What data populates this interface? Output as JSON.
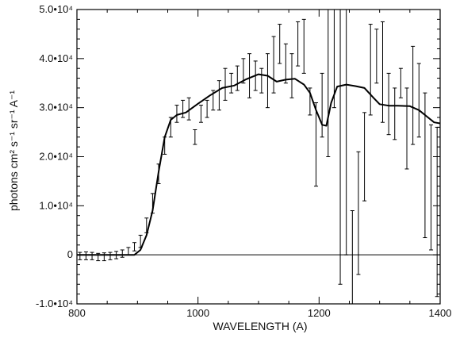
{
  "chart_data": {
    "type": "line",
    "title": "",
    "xlabel": "WAVELENGTH (A)",
    "ylabel": "photons cm² s⁻¹ sr⁻¹ A⁻¹",
    "xlim": [
      800,
      1400
    ],
    "ylim": [
      -10000,
      50000
    ],
    "x_ticks": [
      800,
      1000,
      1200,
      1400
    ],
    "x_tick_labels": [
      "800",
      "1000",
      "1200",
      "1400"
    ],
    "y_ticks": [
      -10000,
      0,
      10000,
      20000,
      30000,
      40000,
      50000
    ],
    "y_tick_labels": [
      "-1.0•10⁴",
      "0",
      "1.0•10⁴",
      "2.0•10⁴",
      "3.0•10⁴",
      "4.0•10⁴",
      "5.0•10⁴"
    ],
    "zero_line": 0,
    "grid": false,
    "model_curve": {
      "x": [
        800,
        850,
        895,
        905,
        915,
        925,
        935,
        945,
        955,
        965,
        980,
        1000,
        1020,
        1040,
        1060,
        1080,
        1100,
        1115,
        1130,
        1145,
        1160,
        1175,
        1185,
        1195,
        1205,
        1212,
        1220,
        1230,
        1245,
        1260,
        1275,
        1290,
        1300,
        1315,
        1330,
        1350,
        1365,
        1380,
        1390,
        1400
      ],
      "y": [
        0,
        0,
        0,
        1000,
        4000,
        9000,
        17000,
        24000,
        27500,
        28500,
        29000,
        30800,
        32500,
        34000,
        34500,
        35800,
        36800,
        36500,
        35300,
        35700,
        35900,
        34700,
        33000,
        29500,
        26500,
        26300,
        31000,
        34300,
        34700,
        34400,
        34000,
        32000,
        30700,
        30400,
        30400,
        30300,
        29500,
        28000,
        27000,
        26800
      ]
    },
    "error_bars": [
      {
        "x": 805,
        "low": -1000,
        "high": 500
      },
      {
        "x": 815,
        "low": -1000,
        "high": 600
      },
      {
        "x": 825,
        "low": -1000,
        "high": 500
      },
      {
        "x": 835,
        "low": -1200,
        "high": 300
      },
      {
        "x": 845,
        "low": -1200,
        "high": 400
      },
      {
        "x": 855,
        "low": -1000,
        "high": 500
      },
      {
        "x": 865,
        "low": -800,
        "high": 700
      },
      {
        "x": 875,
        "low": -500,
        "high": 1000
      },
      {
        "x": 885,
        "low": 0,
        "high": 1500
      },
      {
        "x": 895,
        "low": 800,
        "high": 2500
      },
      {
        "x": 905,
        "low": 1500,
        "high": 4000
      },
      {
        "x": 915,
        "low": 4500,
        "high": 7500
      },
      {
        "x": 925,
        "low": 8500,
        "high": 12500
      },
      {
        "x": 935,
        "low": 14500,
        "high": 18500
      },
      {
        "x": 945,
        "low": 20500,
        "high": 24000
      },
      {
        "x": 955,
        "low": 24000,
        "high": 28000
      },
      {
        "x": 965,
        "low": 27000,
        "high": 30500
      },
      {
        "x": 975,
        "low": 28000,
        "high": 31500
      },
      {
        "x": 985,
        "low": 27500,
        "high": 32000
      },
      {
        "x": 995,
        "low": 22500,
        "high": 25500
      },
      {
        "x": 1005,
        "low": 27000,
        "high": 30500
      },
      {
        "x": 1015,
        "low": 28000,
        "high": 31500
      },
      {
        "x": 1025,
        "low": 29500,
        "high": 33500
      },
      {
        "x": 1035,
        "low": 29500,
        "high": 35500
      },
      {
        "x": 1045,
        "low": 31500,
        "high": 38000
      },
      {
        "x": 1055,
        "low": 33000,
        "high": 37000
      },
      {
        "x": 1065,
        "low": 33500,
        "high": 38500
      },
      {
        "x": 1075,
        "low": 35000,
        "high": 40000
      },
      {
        "x": 1085,
        "low": 32000,
        "high": 41000
      },
      {
        "x": 1095,
        "low": 33500,
        "high": 39500
      },
      {
        "x": 1105,
        "low": 33000,
        "high": 38000
      },
      {
        "x": 1115,
        "low": 30000,
        "high": 41000
      },
      {
        "x": 1125,
        "low": 33000,
        "high": 44500
      },
      {
        "x": 1135,
        "low": 39000,
        "high": 47000
      },
      {
        "x": 1145,
        "low": 35000,
        "high": 43000
      },
      {
        "x": 1155,
        "low": 32000,
        "high": 41000
      },
      {
        "x": 1165,
        "low": 38500,
        "high": 47500
      },
      {
        "x": 1175,
        "low": 37000,
        "high": 48000
      },
      {
        "x": 1185,
        "low": 28500,
        "high": 34000
      },
      {
        "x": 1195,
        "low": 14000,
        "high": 31000
      },
      {
        "x": 1205,
        "low": 24000,
        "high": 37000
      },
      {
        "x": 1215,
        "low": 20000,
        "high": 50000
      },
      {
        "x": 1225,
        "low": 30000,
        "high": 50000
      },
      {
        "x": 1235,
        "low": -6000,
        "high": 50000
      },
      {
        "x": 1245,
        "low": 0,
        "high": 50000
      },
      {
        "x": 1255,
        "low": -10000,
        "high": 9000
      },
      {
        "x": 1265,
        "low": -4000,
        "high": 21000
      },
      {
        "x": 1275,
        "low": 11000,
        "high": 29000
      },
      {
        "x": 1285,
        "low": 28500,
        "high": 47000
      },
      {
        "x": 1295,
        "low": 35000,
        "high": 46000
      },
      {
        "x": 1305,
        "low": 27000,
        "high": 47500
      },
      {
        "x": 1315,
        "low": 24500,
        "high": 37000
      },
      {
        "x": 1325,
        "low": 23500,
        "high": 34000
      },
      {
        "x": 1335,
        "low": 32000,
        "high": 38000
      },
      {
        "x": 1345,
        "low": 17500,
        "high": 34000
      },
      {
        "x": 1355,
        "low": 22500,
        "high": 42500
      },
      {
        "x": 1365,
        "low": 24000,
        "high": 39000
      },
      {
        "x": 1375,
        "low": 3500,
        "high": 33000
      },
      {
        "x": 1385,
        "low": 1000,
        "high": 26500
      },
      {
        "x": 1395,
        "low": -8500,
        "high": 26000
      }
    ]
  }
}
